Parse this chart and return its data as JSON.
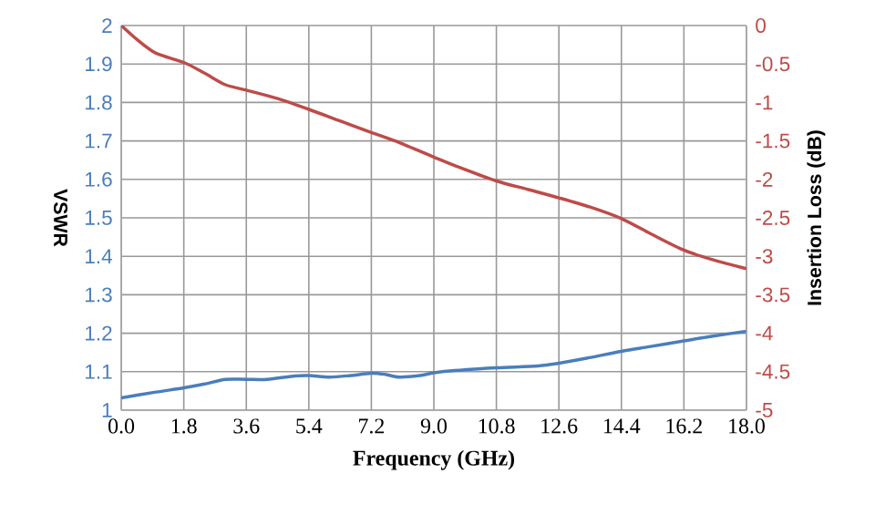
{
  "chart_data": {
    "type": "line",
    "xlabel": "Frequency (GHz)",
    "ylabel": "VSWR",
    "y2label": "Insertion Loss (dB)",
    "series": [
      {
        "color": "#4a7ebb",
        "x": [
          0,
          1.0,
          1.8,
          2.4,
          3.0,
          3.6,
          4.2,
          5.0,
          5.4,
          6.0,
          6.6,
          7.2,
          7.6,
          8.0,
          8.6,
          9.0,
          9.6,
          10.8,
          12.0,
          12.6,
          13.4,
          14.4,
          15.2,
          16.2,
          17.0,
          18.0
        ],
        "values": [
          1.032,
          1.047,
          1.058,
          1.068,
          1.08,
          1.08,
          1.08,
          1.089,
          1.09,
          1.086,
          1.09,
          1.096,
          1.093,
          1.086,
          1.09,
          1.097,
          1.103,
          1.11,
          1.115,
          1.122,
          1.135,
          1.153,
          1.165,
          1.18,
          1.192,
          1.205
        ]
      },
      {
        "color": "#be4b48",
        "axis": "y2",
        "x": [
          0,
          0.5,
          1.0,
          1.8,
          2.4,
          3.0,
          3.6,
          4.5,
          5.4,
          6.3,
          7.2,
          8.0,
          9.0,
          9.6,
          10.8,
          11.7,
          12.6,
          13.5,
          14.4,
          15.3,
          16.2,
          17.0,
          18.0
        ],
        "values": [
          0,
          -0.2,
          -0.36,
          -0.48,
          -0.62,
          -0.77,
          -0.84,
          -0.95,
          -1.09,
          -1.24,
          -1.39,
          -1.52,
          -1.71,
          -1.82,
          -2.02,
          -2.13,
          -2.24,
          -2.36,
          -2.51,
          -2.72,
          -2.92,
          -3.04,
          -3.16
        ]
      }
    ],
    "xlim": [
      0,
      18
    ],
    "ylim": [
      1,
      2
    ],
    "y2lim": [
      -5,
      0
    ],
    "xticks": [
      {
        "value": 0,
        "label": "0.0"
      },
      1.8,
      3.6,
      5.4,
      7.2,
      {
        "value": 9,
        "label": "9.0"
      },
      10.8,
      12.6,
      14.4,
      16.2,
      {
        "value": 18,
        "label": "18.0"
      }
    ],
    "yticks": [
      1,
      1.1,
      1.2,
      1.3,
      1.4,
      1.5,
      1.6,
      1.7,
      1.8,
      1.9,
      2
    ],
    "y2ticks": [
      -5,
      -4.5,
      -4,
      -3.5,
      -3,
      -2.5,
      -2,
      -1.5,
      -1,
      -0.5,
      0
    ],
    "grid": true
  }
}
